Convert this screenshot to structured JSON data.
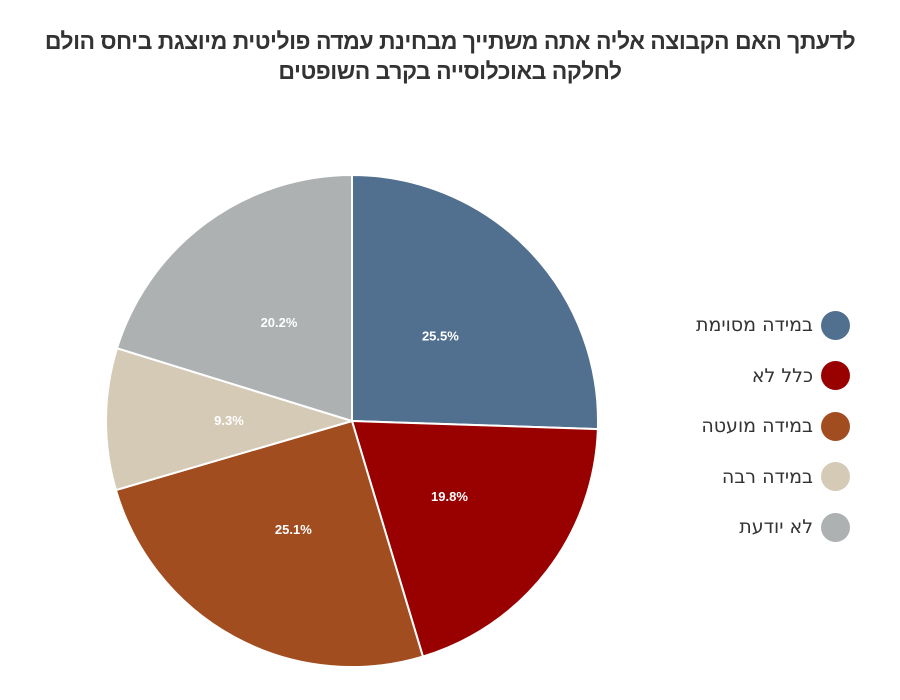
{
  "chart_data": {
    "type": "pie",
    "title_lines": [
      "לדעתך האם הקבוצה אליה אתה משתייך מבחינת עמדה פוליטית מיוצגת ביחס הולם",
      "לחלקה באוכלוסייה בקרב השופטים"
    ],
    "start": "top",
    "direction": "clockwise",
    "legend_position": "right",
    "slices": [
      {
        "label": "במידה מסוימת",
        "value": 25.5,
        "display": "25.5%",
        "color": "#517090"
      },
      {
        "label": "כלל לא",
        "value": 19.8,
        "display": "19.8%",
        "color": "#990000"
      },
      {
        "label": "במידה מועטה",
        "value": 25.1,
        "display": "25.1%",
        "color": "#A24D20"
      },
      {
        "label": "במידה רבה",
        "value": 9.3,
        "display": "9.3%",
        "color": "#D5CAB6"
      },
      {
        "label": "לא יודעת",
        "value": 20.2,
        "display": "20.2%",
        "color": "#ADB1B1"
      }
    ]
  }
}
